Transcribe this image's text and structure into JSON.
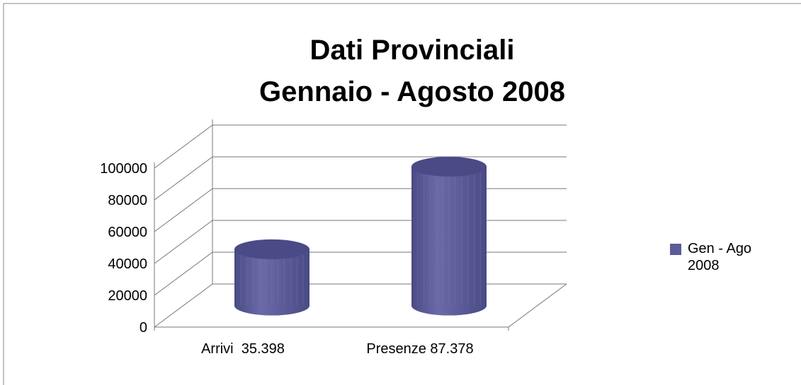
{
  "chart_data": {
    "type": "bar3d",
    "title": [
      "Dati Provinciali",
      "Gennaio - Agosto 2008"
    ],
    "categories": [
      "Arrivi  35.398",
      "Presenze 87.378"
    ],
    "series": [
      {
        "name": "Gen - Ago 2008",
        "color": "#5b5b99",
        "values": [
          35398,
          87378
        ]
      }
    ],
    "ylim": [
      0,
      100000
    ],
    "yticks": [
      0,
      20000,
      40000,
      60000,
      80000,
      100000
    ],
    "grid": true,
    "legend": "right"
  }
}
